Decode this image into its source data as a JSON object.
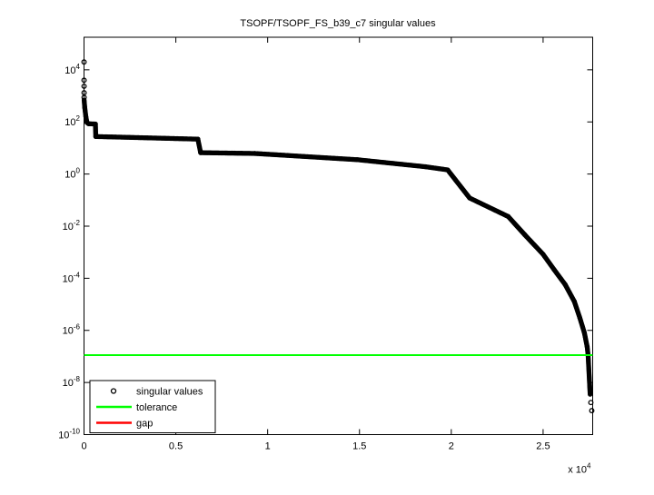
{
  "chart_data": {
    "type": "scatter",
    "title": "TSOPF/TSOPF_FS_b39_c7 singular values",
    "x_axis": {
      "range": [
        0,
        27700
      ],
      "ticks": [
        {
          "value": 0,
          "label": "0"
        },
        {
          "value": 5000,
          "label": "0.5"
        },
        {
          "value": 10000,
          "label": "1"
        },
        {
          "value": 15000,
          "label": "1.5"
        },
        {
          "value": 20000,
          "label": "2"
        },
        {
          "value": 25000,
          "label": "2.5"
        }
      ],
      "multiplier_base": "x 10",
      "multiplier_exponent": "4"
    },
    "y_axis": {
      "scale": "log10",
      "range_exponents": [
        -10,
        5.25
      ],
      "tick_base": "10",
      "tick_exponents": [
        4,
        2,
        0,
        -2,
        -4,
        -6,
        -8,
        -10
      ]
    },
    "series": [
      {
        "name": "singular values",
        "type": "scatter",
        "marker": "open-circle",
        "color": "#000000",
        "n_values": 27650,
        "head_points_log10": [
          [
            1,
            4.3
          ],
          [
            2,
            3.6
          ],
          [
            3,
            3.37
          ],
          [
            4,
            3.12
          ],
          [
            5,
            2.94
          ]
        ],
        "profile_log10": [
          [
            6,
            2.84
          ],
          [
            40,
            2.55
          ],
          [
            100,
            2.2
          ],
          [
            160,
            1.98
          ],
          [
            250,
            1.93
          ],
          [
            620,
            1.92
          ],
          [
            640,
            1.44
          ],
          [
            6200,
            1.34
          ],
          [
            6350,
            0.82
          ],
          [
            9300,
            0.79
          ],
          [
            14900,
            0.55
          ],
          [
            18600,
            0.28
          ],
          [
            19800,
            0.16
          ],
          [
            21000,
            -0.92
          ],
          [
            23100,
            -1.63
          ],
          [
            24000,
            -2.33
          ],
          [
            25000,
            -3.08
          ],
          [
            25600,
            -3.67
          ],
          [
            26200,
            -4.24
          ],
          [
            26700,
            -4.89
          ],
          [
            27000,
            -5.52
          ],
          [
            27250,
            -6.1
          ],
          [
            27400,
            -6.63
          ],
          [
            27450,
            -6.95
          ],
          [
            27560,
            -8.45
          ]
        ],
        "tail_points_log10": [
          [
            27600,
            -8.77
          ],
          [
            27650,
            -9.08
          ]
        ]
      },
      {
        "name": "tolerance",
        "type": "hline",
        "color": "#00FF00",
        "value_log10": -6.95
      },
      {
        "name": "gap",
        "type": "hline",
        "color": "#FF0000",
        "value_log10": null
      }
    ],
    "legend": {
      "position": "south-west",
      "items": [
        {
          "label": "singular values",
          "swatch": "open-circle",
          "color": "#000000"
        },
        {
          "label": "tolerance",
          "swatch": "line",
          "color": "#00FF00"
        },
        {
          "label": "gap",
          "swatch": "line",
          "color": "#FF0000"
        }
      ]
    }
  }
}
